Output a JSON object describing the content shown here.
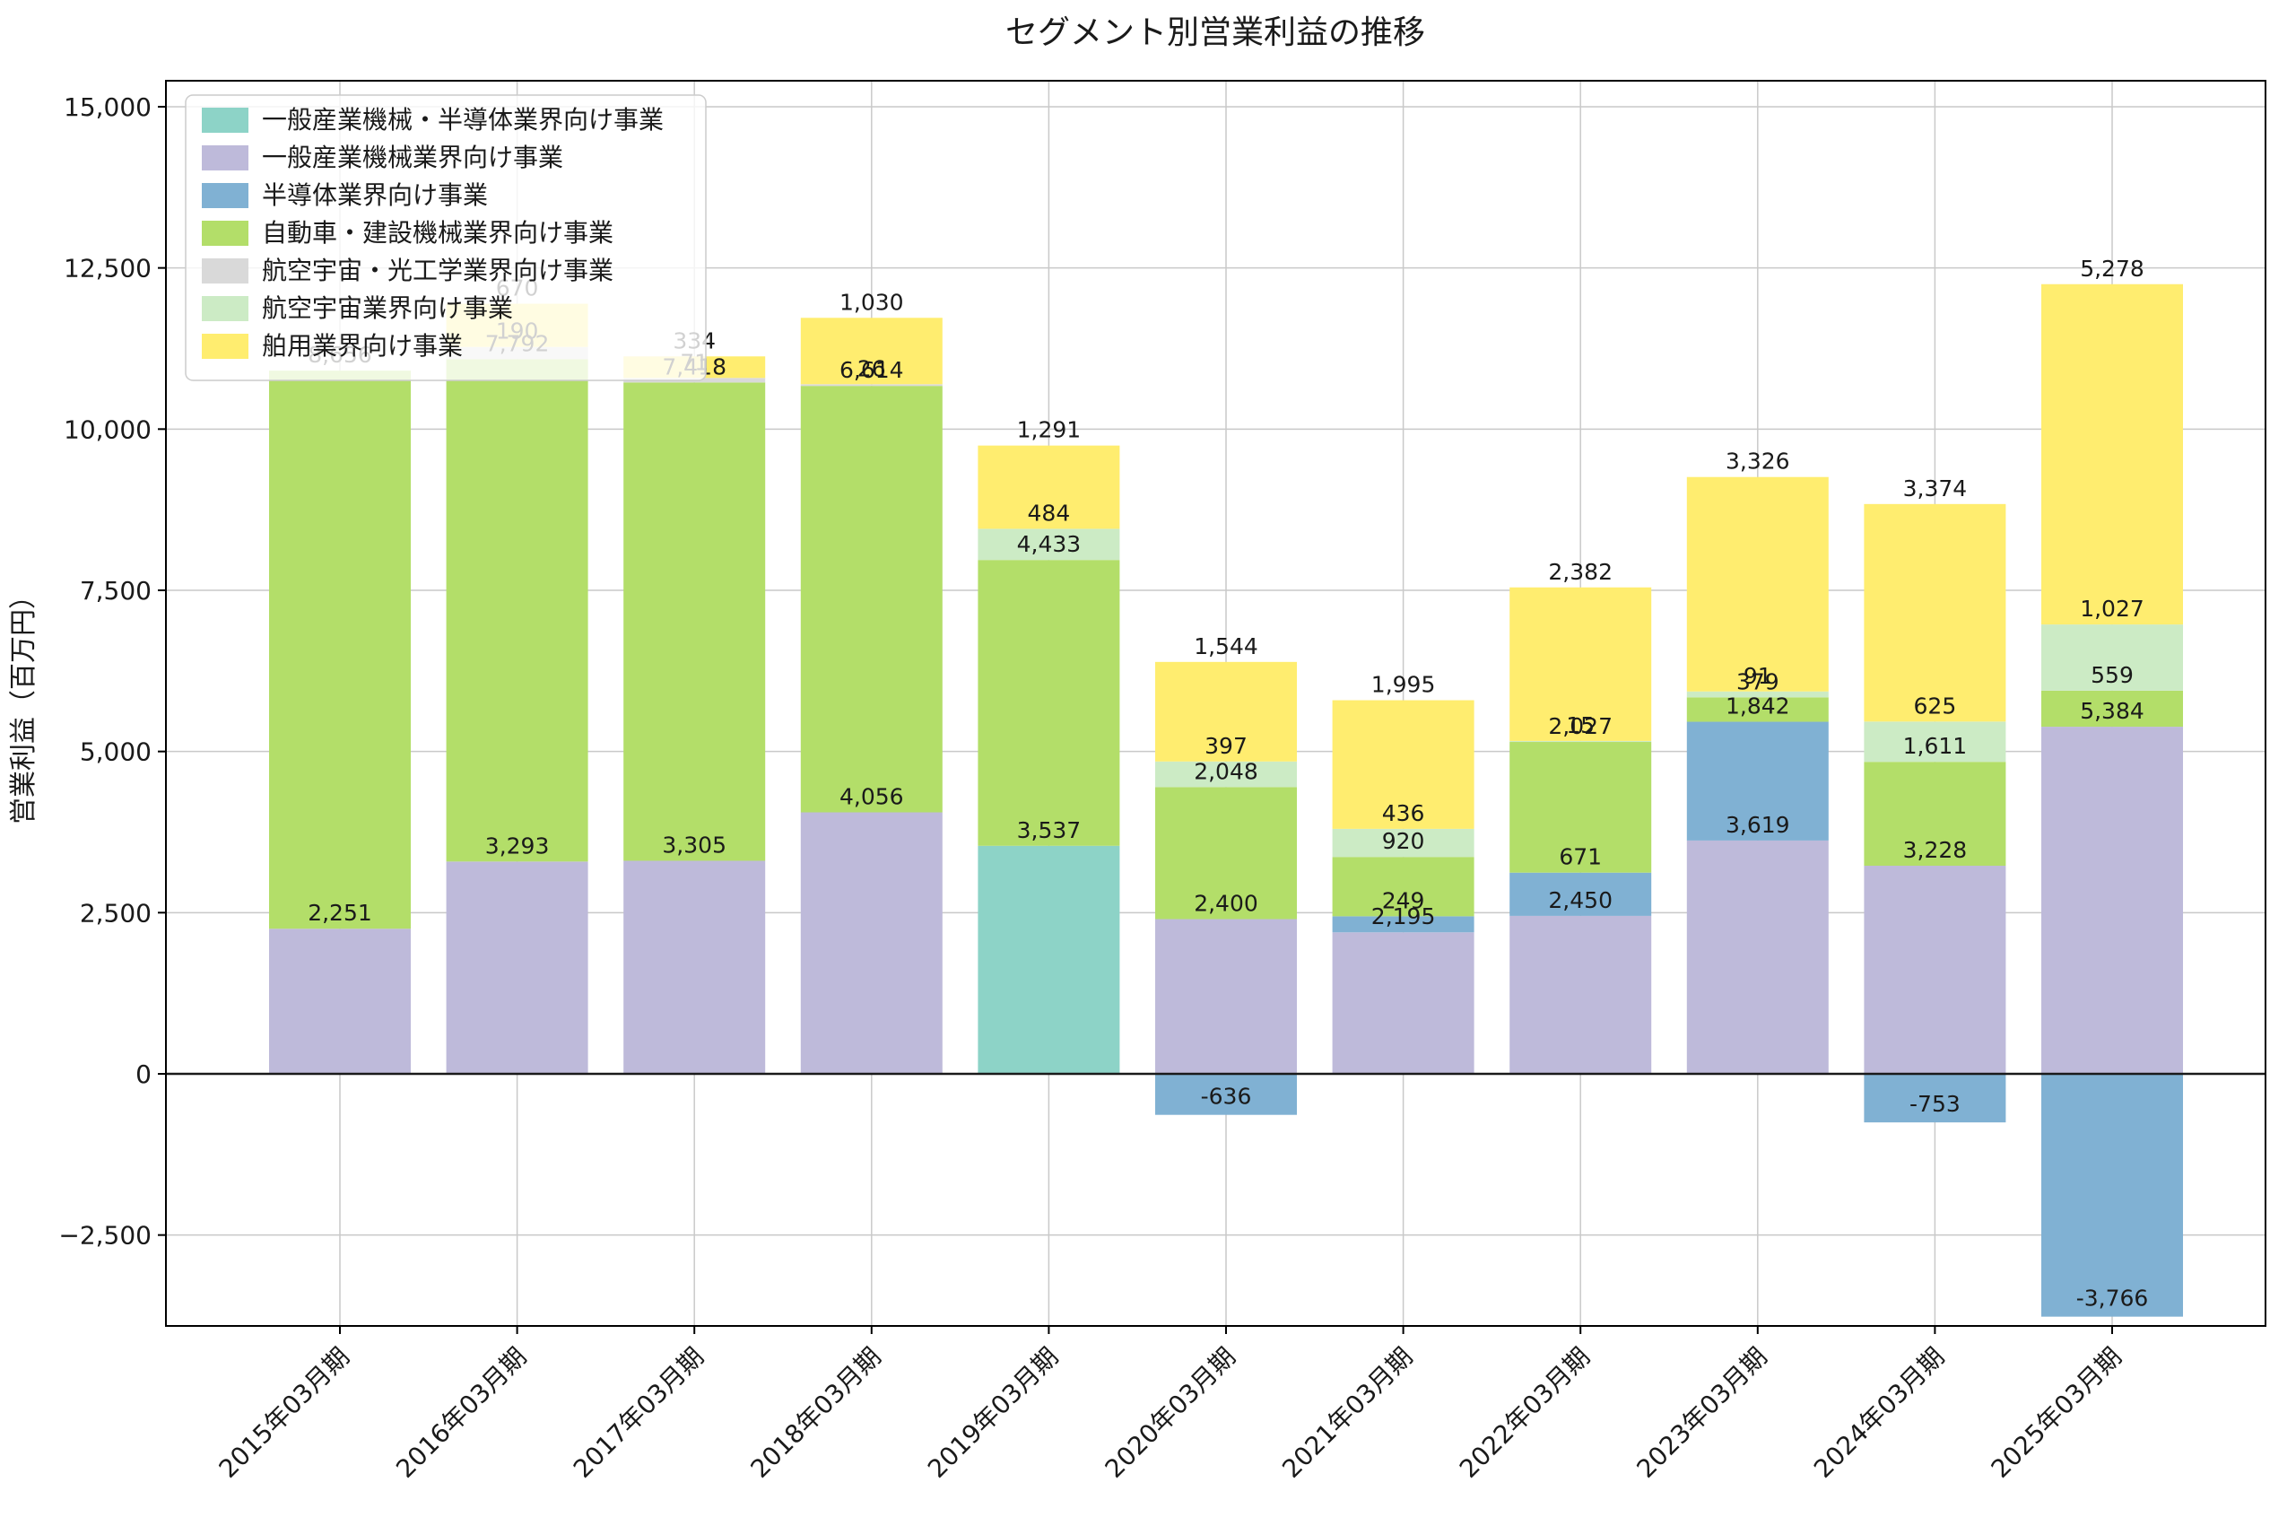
{
  "chart_data": {
    "type": "bar",
    "stacked": true,
    "title": "セグメント別営業利益の推移",
    "ylabel": "営業利益（百万円）",
    "xlabel": "",
    "grid": true,
    "legend_position": "upper-left",
    "background_color": "#ffffff",
    "ylim": [
      -3910,
      15400
    ],
    "yticks": [
      15000,
      12500,
      10000,
      7500,
      5000,
      2500,
      0,
      -2500
    ],
    "categories": [
      "2015年03月期",
      "2016年03月期",
      "2017年03月期",
      "2018年03月期",
      "2019年03月期",
      "2020年03月期",
      "2021年03月期",
      "2022年03月期",
      "2023年03月期",
      "2024年03月期",
      "2025年03月期"
    ],
    "series": [
      {
        "name": "一般産業機械・半導体業界向け事業",
        "color": "#8dd3c7",
        "values": [
          0,
          0,
          0,
          0,
          3537,
          0,
          0,
          0,
          0,
          0,
          0
        ]
      },
      {
        "name": "一般産業機械業界向け事業",
        "color": "#bebada",
        "values": [
          2251,
          3293,
          3305,
          4056,
          0,
          2400,
          2195,
          2450,
          3619,
          3228,
          5384
        ]
      },
      {
        "name": "半導体業界向け事業",
        "color": "#80b1d3",
        "values": [
          0,
          0,
          0,
          0,
          0,
          -636,
          249,
          671,
          1842,
          -753,
          -3766
        ]
      },
      {
        "name": "自動車・建設機械業界向け事業",
        "color": "#b3de69",
        "values": [
          8656,
          7792,
          7418,
          6614,
          4433,
          2048,
          920,
          2027,
          379,
          1611,
          559
        ]
      },
      {
        "name": "航空宇宙・光工学業界向け事業",
        "color": "#d9d9d9",
        "values": [
          0,
          190,
          71,
          26,
          0,
          0,
          0,
          0,
          0,
          0,
          0
        ]
      },
      {
        "name": "航空宇宙業界向け事業",
        "color": "#ccebc5",
        "values": [
          0,
          0,
          0,
          0,
          484,
          397,
          436,
          15,
          91,
          625,
          1027
        ]
      },
      {
        "name": "舶用業界向け事業",
        "color": "#ffed6f",
        "values": [
          0,
          670,
          334,
          1030,
          1291,
          1544,
          1995,
          2382,
          3326,
          3374,
          5278
        ]
      }
    ]
  }
}
